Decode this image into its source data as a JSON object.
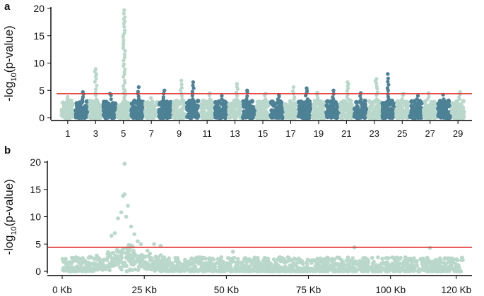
{
  "colors": {
    "light": "#b9d8cb",
    "dark": "#4d8196",
    "threshold": "#e0332e",
    "axis": "#000000",
    "text": "#111111"
  },
  "ylabel_parts": {
    "pre": "-log",
    "sub": "10",
    "post": "(p-value)"
  },
  "chart_data": [
    {
      "panel": "a",
      "type": "scatter",
      "subtype": "manhattan",
      "ylabel": "-log10(p-value)",
      "ylim": [
        0,
        20
      ],
      "yticks": [
        0,
        5,
        10,
        15,
        20
      ],
      "threshold": 4.4,
      "alternating_colors": [
        "light",
        "dark"
      ],
      "chromosomes": [
        {
          "chr": 1,
          "max": 3.8
        },
        {
          "chr": 2,
          "max": 4.7
        },
        {
          "chr": 3,
          "max": 8.9
        },
        {
          "chr": 4,
          "max": 4.4
        },
        {
          "chr": 5,
          "max": 19.7
        },
        {
          "chr": 6,
          "max": 5.6
        },
        {
          "chr": 7,
          "max": 3.6
        },
        {
          "chr": 8,
          "max": 5.0
        },
        {
          "chr": 9,
          "max": 6.8
        },
        {
          "chr": 10,
          "max": 6.5
        },
        {
          "chr": 11,
          "max": 4.5
        },
        {
          "chr": 12,
          "max": 4.0
        },
        {
          "chr": 13,
          "max": 6.2
        },
        {
          "chr": 14,
          "max": 5.0
        },
        {
          "chr": 15,
          "max": 4.4
        },
        {
          "chr": 16,
          "max": 4.2
        },
        {
          "chr": 17,
          "max": 5.6
        },
        {
          "chr": 18,
          "max": 5.4
        },
        {
          "chr": 19,
          "max": 4.6
        },
        {
          "chr": 20,
          "max": 5.0
        },
        {
          "chr": 21,
          "max": 6.5
        },
        {
          "chr": 22,
          "max": 4.5
        },
        {
          "chr": 23,
          "max": 7.1
        },
        {
          "chr": 24,
          "max": 8.0
        },
        {
          "chr": 25,
          "max": 4.4
        },
        {
          "chr": 26,
          "max": 4.0
        },
        {
          "chr": 27,
          "max": 4.5
        },
        {
          "chr": 28,
          "max": 4.2
        },
        {
          "chr": 29,
          "max": 4.7
        }
      ],
      "xtick_labels": [
        "1",
        "3",
        "5",
        "7",
        "9",
        "11",
        "13",
        "15",
        "17",
        "19",
        "21",
        "23",
        "25",
        "27",
        "29"
      ]
    },
    {
      "panel": "b",
      "type": "scatter",
      "subtype": "regional",
      "ylabel": "-log10(p-value)",
      "ylim": [
        0,
        20
      ],
      "yticks": [
        0,
        5,
        10,
        15,
        20
      ],
      "threshold": 4.4,
      "xlim": [
        0,
        122
      ],
      "xticks": [
        0,
        25,
        50,
        75,
        100,
        120
      ],
      "xtick_labels": [
        "0 Kb",
        "25 Kb",
        "50 Kb",
        "75 Kb",
        "100 Kb",
        "120 Kb"
      ],
      "peak": {
        "position_kb": 19,
        "value": 19.7
      },
      "highlights": [
        {
          "position_kb": 15,
          "value": 6.5
        },
        {
          "position_kb": 16,
          "value": 7.0
        },
        {
          "position_kb": 17,
          "value": 9.7
        },
        {
          "position_kb": 18,
          "value": 10.8
        },
        {
          "position_kb": 18.5,
          "value": 13.8
        },
        {
          "position_kb": 19,
          "value": 14.1
        },
        {
          "position_kb": 20,
          "value": 12.0
        },
        {
          "position_kb": 19.5,
          "value": 10.0
        },
        {
          "position_kb": 21,
          "value": 8.2
        },
        {
          "position_kb": 22,
          "value": 6.8
        },
        {
          "position_kb": 23,
          "value": 5.5
        },
        {
          "position_kb": 24,
          "value": 5.0
        },
        {
          "position_kb": 28,
          "value": 5.0
        },
        {
          "position_kb": 30,
          "value": 4.7
        },
        {
          "position_kb": 89,
          "value": 4.4
        },
        {
          "position_kb": 112,
          "value": 4.3
        },
        {
          "position_kb": 52,
          "value": 3.6
        }
      ]
    }
  ]
}
